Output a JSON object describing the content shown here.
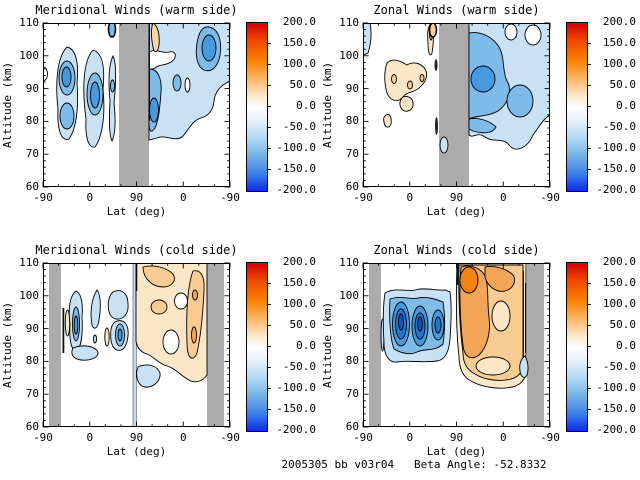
{
  "page": {
    "background": "#ffffff",
    "footer": "2005305 bb v03r04   Beta Angle: -52.8332"
  },
  "axes": {
    "x_label": "Lat (deg)",
    "y_label": "Altitude (km)",
    "x_ticks": [
      "-90",
      "0",
      "90",
      "0",
      "-90"
    ],
    "y_ticks": [
      "110",
      "100",
      "90",
      "80",
      "70",
      "60"
    ],
    "x_axis_note": "latitude folded: ascending leg -90 to 90, then descending leg 90 to -90",
    "y_range_km": [
      60,
      110
    ]
  },
  "colorbar": {
    "min": -200.0,
    "max": 200.0,
    "tick_labels": [
      "200.0",
      "150.0",
      "100.0",
      "50.0",
      "0.0",
      "-50.0",
      "-100.0",
      "-150.0",
      "-200.0"
    ],
    "gradient_top": "#d40000",
    "gradient_middle": "#ffffff",
    "gradient_bottom": "#0a2cf5"
  },
  "colors": {
    "data_gap_gray": "#ababab",
    "blue_levels": [
      "#c8e1f4",
      "#7fbbe9",
      "#4599dc",
      "#2077cc",
      "#0d56c0"
    ],
    "orange_levels": [
      "#fbe6c8",
      "#f7cb92",
      "#f3a557",
      "#ef8410"
    ],
    "contour_line": "#000000"
  },
  "panels": [
    {
      "id": "meridional-warm",
      "title": "Meridional Winds (warm side)"
    },
    {
      "id": "zonal-warm",
      "title": "Zonal Winds (warm side)"
    },
    {
      "id": "meridional-cold",
      "title": "Meridional Winds (cold side)"
    },
    {
      "id": "zonal-cold",
      "title": "Zonal Winds (cold side)"
    }
  ],
  "chart_data": [
    {
      "type": "contour",
      "title": "Meridional Winds (warm side)",
      "xlabel": "Lat (deg)",
      "ylabel": "Altitude (km)",
      "x_tick_labels": [
        "-90",
        "0",
        "90",
        "0",
        "-90"
      ],
      "y_range": [
        60,
        110
      ],
      "value_range": [
        -200,
        200
      ],
      "contour_interval": 25,
      "data_gap": "vertical gray band near ascending lat 55 through descending lat 65, full altitude range",
      "features": [
        {
          "region": "ascending lats -65 to -40, alt 75-103 km",
          "approx_value": -50,
          "color": "blue cells with -75 cores"
        },
        {
          "region": "ascending lats -35 to -10, alt 74-103 km",
          "approx_value": -50,
          "color": "blue cell with -75 core near 88 km"
        },
        {
          "region": "ascending lats 10 to 25, alt 75-105 km",
          "approx_value": -30,
          "color": "thin light blue"
        },
        {
          "region": "descending lats 60 to -90, alt 73-110 km",
          "approx_value": -40,
          "color": "broad light blue with -75 cores near 100-105 km and 80-95 km"
        },
        {
          "region": "descending lat ~60, alt 105-110 km",
          "approx_value": 30,
          "color": "small tan patch"
        }
      ]
    },
    {
      "type": "contour",
      "title": "Zonal Winds (warm side)",
      "xlabel": "Lat (deg)",
      "ylabel": "Altitude (km)",
      "x_tick_labels": [
        "-90",
        "0",
        "90",
        "0",
        "-90"
      ],
      "y_range": [
        60,
        110
      ],
      "value_range": [
        -200,
        200
      ],
      "contour_interval": 25,
      "data_gap": "vertical gray band near ascending lat 55 through descending lat 65, full altitude range",
      "features": [
        {
          "region": "ascending lat -90 edge, alt 100-110 km",
          "approx_value": -30,
          "color": "small light blue sliver"
        },
        {
          "region": "ascending lats -50 to 25, alt 83-99 km",
          "approx_value": 30,
          "color": "tan cluster with +50 spots"
        },
        {
          "region": "ascending lats -60 to -55, alt 77-82 km",
          "approx_value": 30,
          "color": "small tan blob"
        },
        {
          "region": "descending lats 65 to -90, alt 71-110 km",
          "approx_value": -50,
          "color": "broad blue, -75 core near 85-95 km, white holes at 105-110 km"
        }
      ]
    },
    {
      "type": "contour",
      "title": "Meridional Winds (cold side)",
      "xlabel": "Lat (deg)",
      "ylabel": "Altitude (km)",
      "x_tick_labels": [
        "-90",
        "0",
        "90",
        "0",
        "-90"
      ],
      "y_range": [
        60,
        110
      ],
      "value_range": [
        -200,
        200
      ],
      "contour_interval": 25,
      "data_gap": "gray bands at ascending lats -78 to -55 and descending lats -55 to -78, full altitude range",
      "features": [
        {
          "region": "ascending lats -45 to 40, alt 80-102 km",
          "approx_value": -40,
          "color": "several light blue cells, -60 cores"
        },
        {
          "region": "ascending lat ~90 (turn point), full altitude",
          "approx_value": -30,
          "color": "thin light blue stripe"
        },
        {
          "region": "descending lats 85 to -50, alt 74-110 km",
          "approx_value": 45,
          "color": "broad tan/orange with +50 to +75 patches"
        },
        {
          "region": "descending lats 80 to 55, alt 68-77 km",
          "approx_value": -30,
          "color": "small light blue blob"
        }
      ]
    },
    {
      "type": "contour",
      "title": "Zonal Winds (cold side)",
      "xlabel": "Lat (deg)",
      "ylabel": "Altitude (km)",
      "x_tick_labels": [
        "-90",
        "0",
        "90",
        "0",
        "-90"
      ],
      "y_range": [
        60,
        110
      ],
      "value_range": [
        -200,
        200
      ],
      "contour_interval": 25,
      "data_gap": "gray bands at ascending lats -78 to -55 and descending lats -55 to -78, full altitude range",
      "features": [
        {
          "region": "ascending lats -50 to 40, alt 80-102 km",
          "approx_value": -75,
          "color": "large blue block with nested cores to -125 near 88-95 km"
        },
        {
          "region": "descending lats 85 to -45, alt 73-110 km",
          "approx_value": 60,
          "color": "large orange region, +100 core near 103-110 km, cream holes"
        },
        {
          "region": "descending lat ~-50, alt 68-75 km",
          "approx_value": -30,
          "color": "small light blue teardrop"
        }
      ]
    }
  ]
}
